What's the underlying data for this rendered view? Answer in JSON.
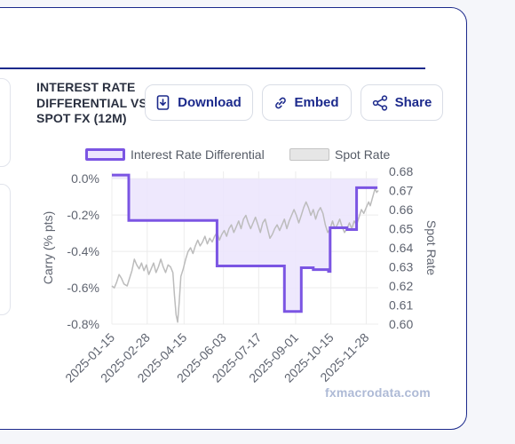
{
  "title": "INTEREST RATE DIFFERENTIAL VS SPOT FX (12M)",
  "buttons": {
    "download": "Download",
    "embed": "Embed",
    "share": "Share"
  },
  "watermark": "fxmacrodata.com",
  "colors": {
    "accent": "#1c2a8c",
    "differential": "#7b55e3",
    "differential_fill": "#ece6fd",
    "spot": "#bcbcbc"
  },
  "chart_data": {
    "type": "line",
    "legend_position": "top",
    "grid": true,
    "x_ticks": [
      "2025-01-15",
      "2025-02-28",
      "2025-04-15",
      "2025-06-03",
      "2025-07-17",
      "2025-09-01",
      "2025-10-15",
      "2025-11-28"
    ],
    "y_left": {
      "label": "Carry (% pts)",
      "ticks": [
        "0.0%",
        "-0.2%",
        "-0.4%",
        "-0.6%",
        "-0.8%"
      ],
      "tick_values": [
        0.0,
        -0.2,
        -0.4,
        -0.6,
        -0.8
      ],
      "range": [
        -0.8,
        0.04
      ]
    },
    "y_right": {
      "label": "Spot Rate",
      "ticks": [
        "0.68",
        "0.67",
        "0.66",
        "0.65",
        "0.64",
        "0.63",
        "0.62",
        "0.61",
        "0.60"
      ],
      "tick_values": [
        0.68,
        0.67,
        0.66,
        0.65,
        0.64,
        0.63,
        0.62,
        0.61,
        0.6
      ],
      "range": [
        0.6,
        0.68
      ]
    },
    "series": [
      {
        "name": "Interest Rate Differential",
        "axis": "left",
        "style": "step-area",
        "points": [
          [
            "2025-01-15",
            0.02
          ],
          [
            "2025-02-05",
            0.02
          ],
          [
            "2025-02-05",
            -0.23
          ],
          [
            "2025-05-26",
            -0.23
          ],
          [
            "2025-05-26",
            -0.48
          ],
          [
            "2025-08-18",
            -0.48
          ],
          [
            "2025-08-18",
            -0.73
          ],
          [
            "2025-09-08",
            -0.73
          ],
          [
            "2025-09-08",
            -0.49
          ],
          [
            "2025-09-23",
            -0.49
          ],
          [
            "2025-09-23",
            -0.5
          ],
          [
            "2025-10-12",
            -0.5
          ],
          [
            "2025-10-12",
            -0.51
          ],
          [
            "2025-10-14",
            -0.51
          ],
          [
            "2025-10-14",
            -0.27
          ],
          [
            "2025-11-04",
            -0.27
          ],
          [
            "2025-11-04",
            -0.28
          ],
          [
            "2025-11-16",
            -0.28
          ],
          [
            "2025-11-16",
            -0.05
          ],
          [
            "2025-12-12",
            -0.05
          ]
        ]
      },
      {
        "name": "Spot Rate",
        "axis": "right",
        "style": "line",
        "points": [
          [
            "2025-01-15",
            0.62
          ],
          [
            "2025-01-18",
            0.619
          ],
          [
            "2025-01-21",
            0.622
          ],
          [
            "2025-01-24",
            0.626
          ],
          [
            "2025-01-27",
            0.624
          ],
          [
            "2025-01-30",
            0.621
          ],
          [
            "2025-02-03",
            0.62
          ],
          [
            "2025-02-06",
            0.624
          ],
          [
            "2025-02-09",
            0.628
          ],
          [
            "2025-02-12",
            0.634
          ],
          [
            "2025-02-15",
            0.631
          ],
          [
            "2025-02-18",
            0.629
          ],
          [
            "2025-02-21",
            0.632
          ],
          [
            "2025-02-24",
            0.628
          ],
          [
            "2025-02-27",
            0.631
          ],
          [
            "2025-03-02",
            0.626
          ],
          [
            "2025-03-05",
            0.629
          ],
          [
            "2025-03-08",
            0.632
          ],
          [
            "2025-03-11",
            0.627
          ],
          [
            "2025-03-14",
            0.63
          ],
          [
            "2025-03-17",
            0.634
          ],
          [
            "2025-03-20",
            0.63
          ],
          [
            "2025-03-23",
            0.627
          ],
          [
            "2025-03-26",
            0.631
          ],
          [
            "2025-03-29",
            0.63
          ],
          [
            "2025-04-01",
            0.627
          ],
          [
            "2025-04-03",
            0.615
          ],
          [
            "2025-04-05",
            0.605
          ],
          [
            "2025-04-07",
            0.601
          ],
          [
            "2025-04-09",
            0.612
          ],
          [
            "2025-04-11",
            0.625
          ],
          [
            "2025-04-14",
            0.629
          ],
          [
            "2025-04-17",
            0.634
          ],
          [
            "2025-04-20",
            0.638
          ],
          [
            "2025-04-23",
            0.64
          ],
          [
            "2025-04-26",
            0.637
          ],
          [
            "2025-04-29",
            0.641
          ],
          [
            "2025-05-02",
            0.644
          ],
          [
            "2025-05-05",
            0.641
          ],
          [
            "2025-05-08",
            0.643
          ],
          [
            "2025-05-11",
            0.646
          ],
          [
            "2025-05-14",
            0.642
          ],
          [
            "2025-05-17",
            0.645
          ],
          [
            "2025-05-20",
            0.643
          ],
          [
            "2025-05-23",
            0.646
          ],
          [
            "2025-05-26",
            0.648
          ],
          [
            "2025-05-29",
            0.644
          ],
          [
            "2025-06-01",
            0.647
          ],
          [
            "2025-06-04",
            0.649
          ],
          [
            "2025-06-07",
            0.646
          ],
          [
            "2025-06-10",
            0.65
          ],
          [
            "2025-06-13",
            0.652
          ],
          [
            "2025-06-16",
            0.648
          ],
          [
            "2025-06-19",
            0.651
          ],
          [
            "2025-06-22",
            0.654
          ],
          [
            "2025-06-25",
            0.65
          ],
          [
            "2025-06-28",
            0.655
          ],
          [
            "2025-07-01",
            0.657
          ],
          [
            "2025-07-04",
            0.653
          ],
          [
            "2025-07-07",
            0.65
          ],
          [
            "2025-07-10",
            0.653
          ],
          [
            "2025-07-13",
            0.656
          ],
          [
            "2025-07-16",
            0.652
          ],
          [
            "2025-07-19",
            0.648
          ],
          [
            "2025-07-22",
            0.653
          ],
          [
            "2025-07-25",
            0.655
          ],
          [
            "2025-07-28",
            0.65
          ],
          [
            "2025-07-31",
            0.645
          ],
          [
            "2025-08-03",
            0.647
          ],
          [
            "2025-08-06",
            0.65
          ],
          [
            "2025-08-09",
            0.652
          ],
          [
            "2025-08-12",
            0.649
          ],
          [
            "2025-08-15",
            0.652
          ],
          [
            "2025-08-18",
            0.655
          ],
          [
            "2025-08-21",
            0.65
          ],
          [
            "2025-08-24",
            0.654
          ],
          [
            "2025-08-27",
            0.657
          ],
          [
            "2025-08-30",
            0.66
          ],
          [
            "2025-09-02",
            0.657
          ],
          [
            "2025-09-05",
            0.653
          ],
          [
            "2025-09-08",
            0.657
          ],
          [
            "2025-09-11",
            0.661
          ],
          [
            "2025-09-14",
            0.664
          ],
          [
            "2025-09-17",
            0.661
          ],
          [
            "2025-09-20",
            0.657
          ],
          [
            "2025-09-23",
            0.66
          ],
          [
            "2025-09-26",
            0.655
          ],
          [
            "2025-09-29",
            0.659
          ],
          [
            "2025-10-02",
            0.661
          ],
          [
            "2025-10-05",
            0.658
          ],
          [
            "2025-10-08",
            0.652
          ],
          [
            "2025-10-11",
            0.648
          ],
          [
            "2025-10-14",
            0.65
          ],
          [
            "2025-10-17",
            0.654
          ],
          [
            "2025-10-20",
            0.65
          ],
          [
            "2025-10-23",
            0.652
          ],
          [
            "2025-10-26",
            0.655
          ],
          [
            "2025-10-29",
            0.651
          ],
          [
            "2025-11-01",
            0.648
          ],
          [
            "2025-11-04",
            0.65
          ],
          [
            "2025-11-07",
            0.653
          ],
          [
            "2025-11-10",
            0.65
          ],
          [
            "2025-11-13",
            0.654
          ],
          [
            "2025-11-16",
            0.652
          ],
          [
            "2025-11-19",
            0.656
          ],
          [
            "2025-11-22",
            0.66
          ],
          [
            "2025-11-25",
            0.658
          ],
          [
            "2025-11-28",
            0.661
          ],
          [
            "2025-12-01",
            0.664
          ],
          [
            "2025-12-03",
            0.662
          ],
          [
            "2025-12-05",
            0.665
          ],
          [
            "2025-12-07",
            0.668
          ],
          [
            "2025-12-09",
            0.671
          ],
          [
            "2025-12-11",
            0.669
          ],
          [
            "2025-12-13",
            0.67
          ]
        ]
      }
    ]
  }
}
